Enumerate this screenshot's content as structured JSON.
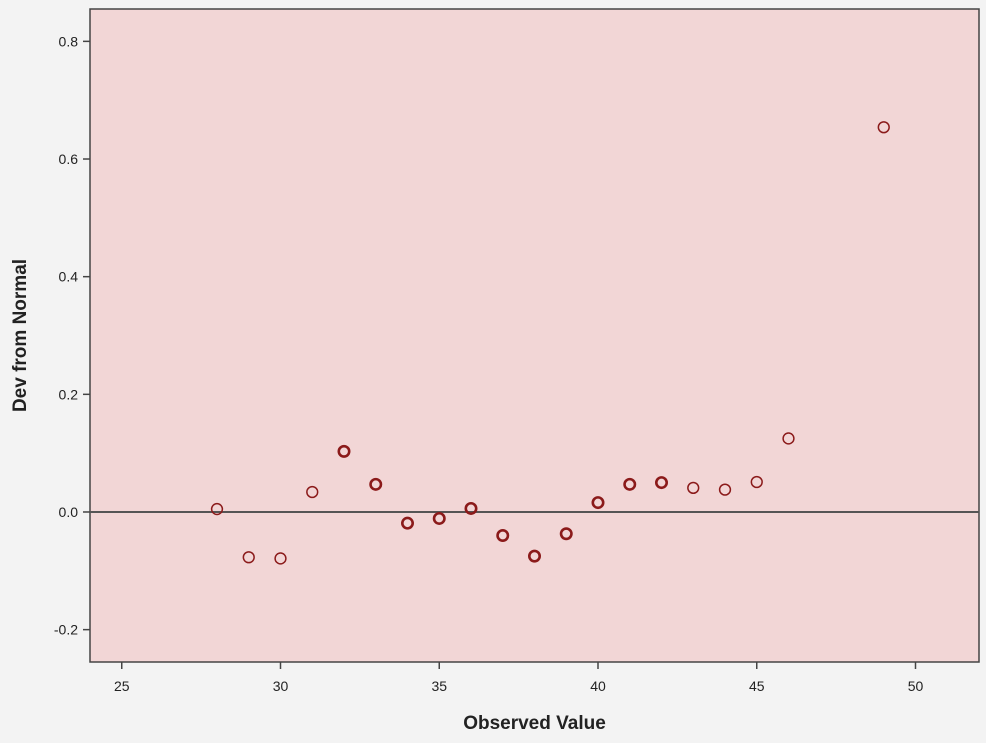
{
  "chart_data": {
    "type": "scatter",
    "title": "",
    "xlabel": "Observed Value",
    "ylabel": "Dev from Normal",
    "xlim": [
      24,
      52
    ],
    "ylim": [
      -0.255,
      0.855
    ],
    "xticks": [
      25,
      30,
      35,
      40,
      45,
      50
    ],
    "xtick_labels": [
      "25",
      "30",
      "35",
      "40",
      "45",
      "50"
    ],
    "yticks": [
      -0.2,
      0.0,
      0.2,
      0.4,
      0.6,
      0.8
    ],
    "ytick_labels": [
      "-0.2",
      "0.0",
      "0.2",
      "0.4",
      "0.6",
      "0.8"
    ],
    "reference_line_y": 0.0,
    "grid": false,
    "legend": "none",
    "series": [
      {
        "x": [
          28,
          29,
          30,
          31,
          32,
          33,
          34,
          35,
          36,
          37,
          38,
          39,
          40,
          41,
          42,
          43,
          44,
          45,
          46,
          49
        ],
        "y": [
          0.005,
          -0.077,
          -0.079,
          0.034,
          0.103,
          0.047,
          -0.019,
          -0.011,
          0.006,
          -0.04,
          -0.075,
          -0.037,
          0.016,
          0.047,
          0.05,
          0.041,
          0.038,
          0.051,
          0.125,
          0.654
        ],
        "weights": [
          1,
          1,
          1,
          1,
          2,
          2,
          2,
          2,
          2,
          2,
          2,
          2,
          2,
          2,
          2,
          1,
          1,
          1,
          1,
          1
        ]
      }
    ],
    "colors": {
      "plot_background": "#f2d6d6",
      "outer_background": "#f3f3f3",
      "marker": "#8b1a1a",
      "axis": "#444444",
      "reference_line": "#555555",
      "text": "#222222"
    }
  }
}
